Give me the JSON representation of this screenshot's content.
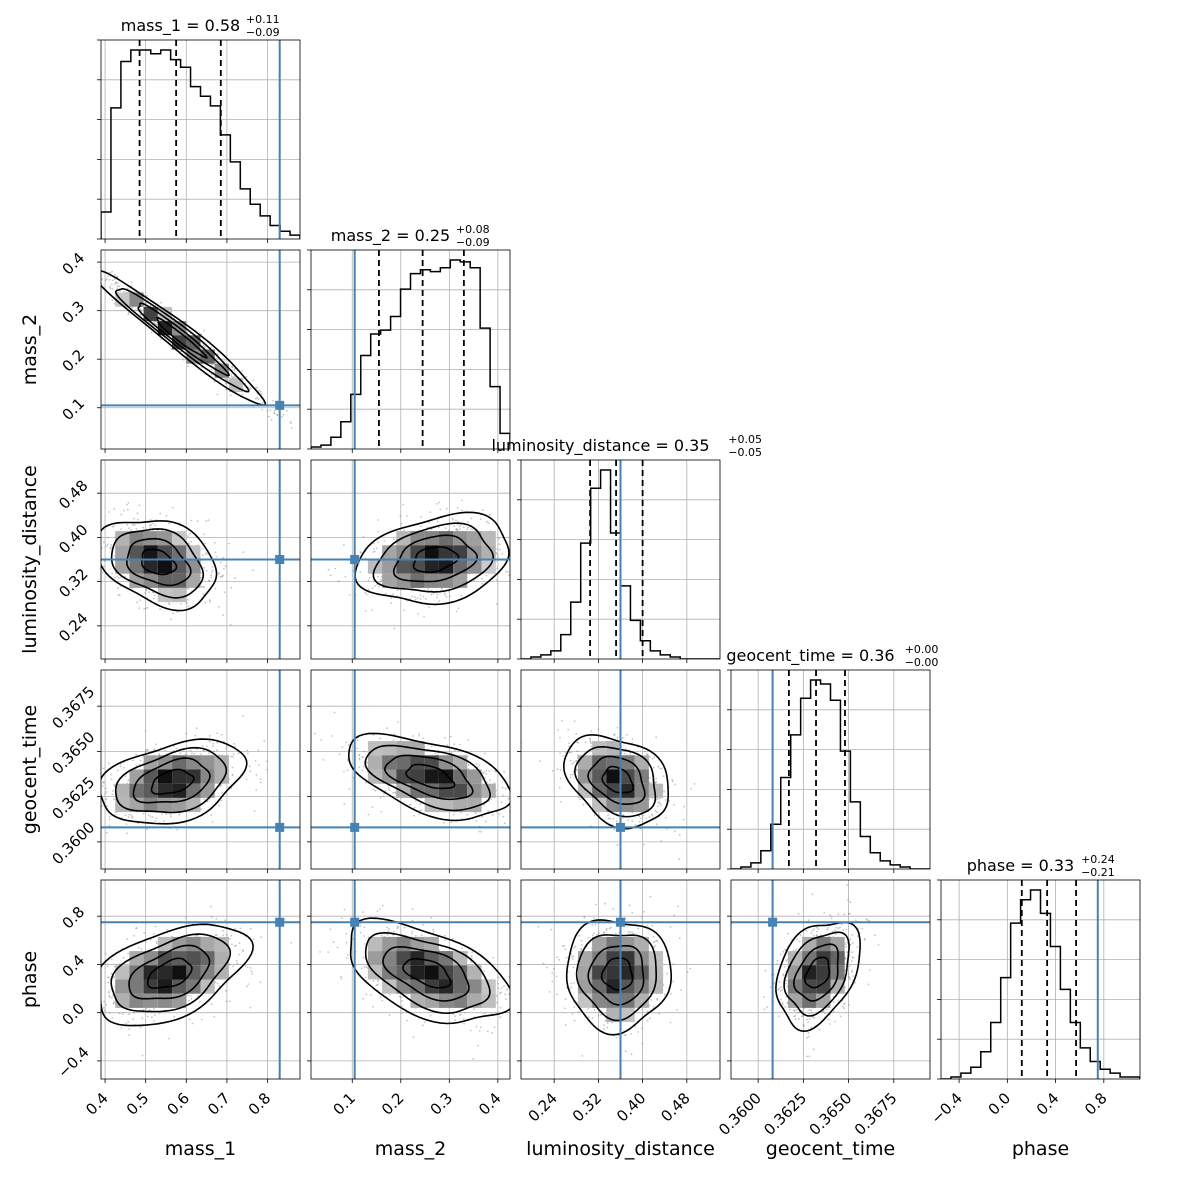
{
  "chart_data": {
    "type": "corner",
    "grid": true,
    "parameters": [
      {
        "key": "mass_1",
        "label": "mass_1",
        "range": [
          0.39,
          0.88
        ],
        "ticks": [
          0.4,
          0.5,
          0.6,
          0.7,
          0.8
        ],
        "tick_labels": [
          "0.4",
          "0.5",
          "0.6",
          "0.7",
          "0.8"
        ],
        "title": {
          "main": "mass_1 = 0.58",
          "plus": "+0.11",
          "minus": "−0.09"
        },
        "quantiles": [
          0.485,
          0.575,
          0.685
        ],
        "truth": 0.83,
        "hist_edges_range": [
          0.39,
          0.88
        ],
        "hist": [
          0.14,
          0.68,
          0.92,
          0.98,
          0.98,
          0.96,
          0.98,
          0.93,
          0.89,
          0.79,
          0.74,
          0.69,
          0.54,
          0.4,
          0.26,
          0.18,
          0.12,
          0.07,
          0.04,
          0.02
        ]
      },
      {
        "key": "mass_2",
        "label": "mass_2",
        "range": [
          0.015,
          0.425
        ],
        "ticks": [
          0.1,
          0.2,
          0.3,
          0.4
        ],
        "tick_labels": [
          "0.1",
          "0.2",
          "0.3",
          "0.4"
        ],
        "title": {
          "main": "mass_2 = 0.25",
          "plus": "+0.08",
          "minus": "−0.09"
        },
        "quantiles": [
          0.155,
          0.245,
          0.33
        ],
        "truth": 0.105,
        "hist_edges_range": [
          0.015,
          0.425
        ],
        "hist": [
          0.01,
          0.02,
          0.06,
          0.14,
          0.28,
          0.48,
          0.59,
          0.61,
          0.68,
          0.82,
          0.9,
          0.92,
          0.91,
          0.93,
          0.97,
          0.96,
          0.93,
          0.62,
          0.32,
          0.08
        ]
      },
      {
        "key": "luminosity_distance",
        "label": "luminosity_distance",
        "range": [
          0.18,
          0.54
        ],
        "ticks": [
          0.24,
          0.32,
          0.4,
          0.48
        ],
        "tick_labels": [
          "0.24",
          "0.32",
          "0.40",
          "0.48"
        ],
        "title": {
          "main": "luminosity_distance = 0.35",
          "plus": "+0.05",
          "minus": "−0.05"
        },
        "quantiles": [
          0.305,
          0.352,
          0.4
        ],
        "truth": 0.36,
        "hist_edges_range": [
          0.18,
          0.54
        ],
        "hist": [
          0.0,
          0.01,
          0.02,
          0.04,
          0.12,
          0.28,
          0.57,
          0.84,
          0.93,
          0.62,
          0.36,
          0.19,
          0.09,
          0.04,
          0.02,
          0.01,
          0.0,
          0.0,
          0.0,
          0.0
        ]
      },
      {
        "key": "geocent_time",
        "label": "geocent_time",
        "range": [
          0.3585,
          0.3695
        ],
        "ticks": [
          0.36,
          0.3625,
          0.365,
          0.3675
        ],
        "tick_labels": [
          "0.3600",
          "0.3625",
          "0.3650",
          "0.3675"
        ],
        "title": {
          "main": "geocent_time = 0.36",
          "plus": "+0.00",
          "minus": "−0.00"
        },
        "quantiles": [
          0.3617,
          0.3632,
          0.3648
        ],
        "truth": 0.3608,
        "hist_edges_range": [
          0.3585,
          0.3695
        ],
        "hist": [
          0.0,
          0.01,
          0.03,
          0.09,
          0.22,
          0.45,
          0.66,
          0.84,
          0.93,
          0.91,
          0.83,
          0.58,
          0.33,
          0.16,
          0.08,
          0.04,
          0.02,
          0.01,
          0.0,
          0.0
        ]
      },
      {
        "key": "phase",
        "label": "phase",
        "range": [
          -0.55,
          1.1
        ],
        "ticks": [
          -0.4,
          0.0,
          0.4,
          0.8
        ],
        "tick_labels": [
          "−0.4",
          "0.0",
          "0.4",
          "0.8"
        ],
        "title": {
          "main": "phase = 0.33",
          "plus": "+0.24",
          "minus": "−0.21"
        },
        "quantiles": [
          0.12,
          0.33,
          0.57
        ],
        "truth": 0.75,
        "hist_edges_range": [
          -0.55,
          1.1
        ],
        "hist": [
          0.0,
          0.01,
          0.03,
          0.06,
          0.14,
          0.29,
          0.52,
          0.8,
          0.92,
          0.97,
          0.85,
          0.68,
          0.46,
          0.29,
          0.16,
          0.09,
          0.05,
          0.03,
          0.01,
          0.01
        ]
      }
    ],
    "pair_distributions": [
      {
        "x": "mass_1",
        "y": "mass_2",
        "center": [
          0.585,
          0.245
        ],
        "sigma": [
          0.1,
          0.066
        ],
        "rho": -0.97
      },
      {
        "x": "mass_1",
        "y": "luminosity_distance",
        "center": [
          0.53,
          0.355
        ],
        "sigma": [
          0.07,
          0.038
        ],
        "rho": -0.3
      },
      {
        "x": "mass_2",
        "y": "luminosity_distance",
        "center": [
          0.27,
          0.36
        ],
        "sigma": [
          0.075,
          0.038
        ],
        "rho": 0.25
      },
      {
        "x": "mass_1",
        "y": "geocent_time",
        "center": [
          0.565,
          0.3633
        ],
        "sigma": [
          0.085,
          0.0011
        ],
        "rho": 0.35
      },
      {
        "x": "mass_2",
        "y": "geocent_time",
        "center": [
          0.26,
          0.3636
        ],
        "sigma": [
          0.08,
          0.0011
        ],
        "rho": -0.5
      },
      {
        "x": "luminosity_distance",
        "y": "geocent_time",
        "center": [
          0.355,
          0.3634
        ],
        "sigma": [
          0.045,
          0.0012
        ],
        "rho": -0.3
      },
      {
        "x": "mass_1",
        "y": "phase",
        "center": [
          0.56,
          0.32
        ],
        "sigma": [
          0.09,
          0.2
        ],
        "rho": 0.45
      },
      {
        "x": "mass_2",
        "y": "phase",
        "center": [
          0.255,
          0.33
        ],
        "sigma": [
          0.08,
          0.2
        ],
        "rho": -0.5
      },
      {
        "x": "luminosity_distance",
        "y": "phase",
        "center": [
          0.355,
          0.32
        ],
        "sigma": [
          0.045,
          0.22
        ],
        "rho": 0.0
      },
      {
        "x": "geocent_time",
        "y": "phase",
        "center": [
          0.3633,
          0.33
        ],
        "sigma": [
          0.0011,
          0.21
        ],
        "rho": 0.35
      }
    ],
    "colors": {
      "truth": "#4682b4",
      "hist": "#000000",
      "grid": "#b0b0b0",
      "points": "#7f7f7f"
    }
  }
}
